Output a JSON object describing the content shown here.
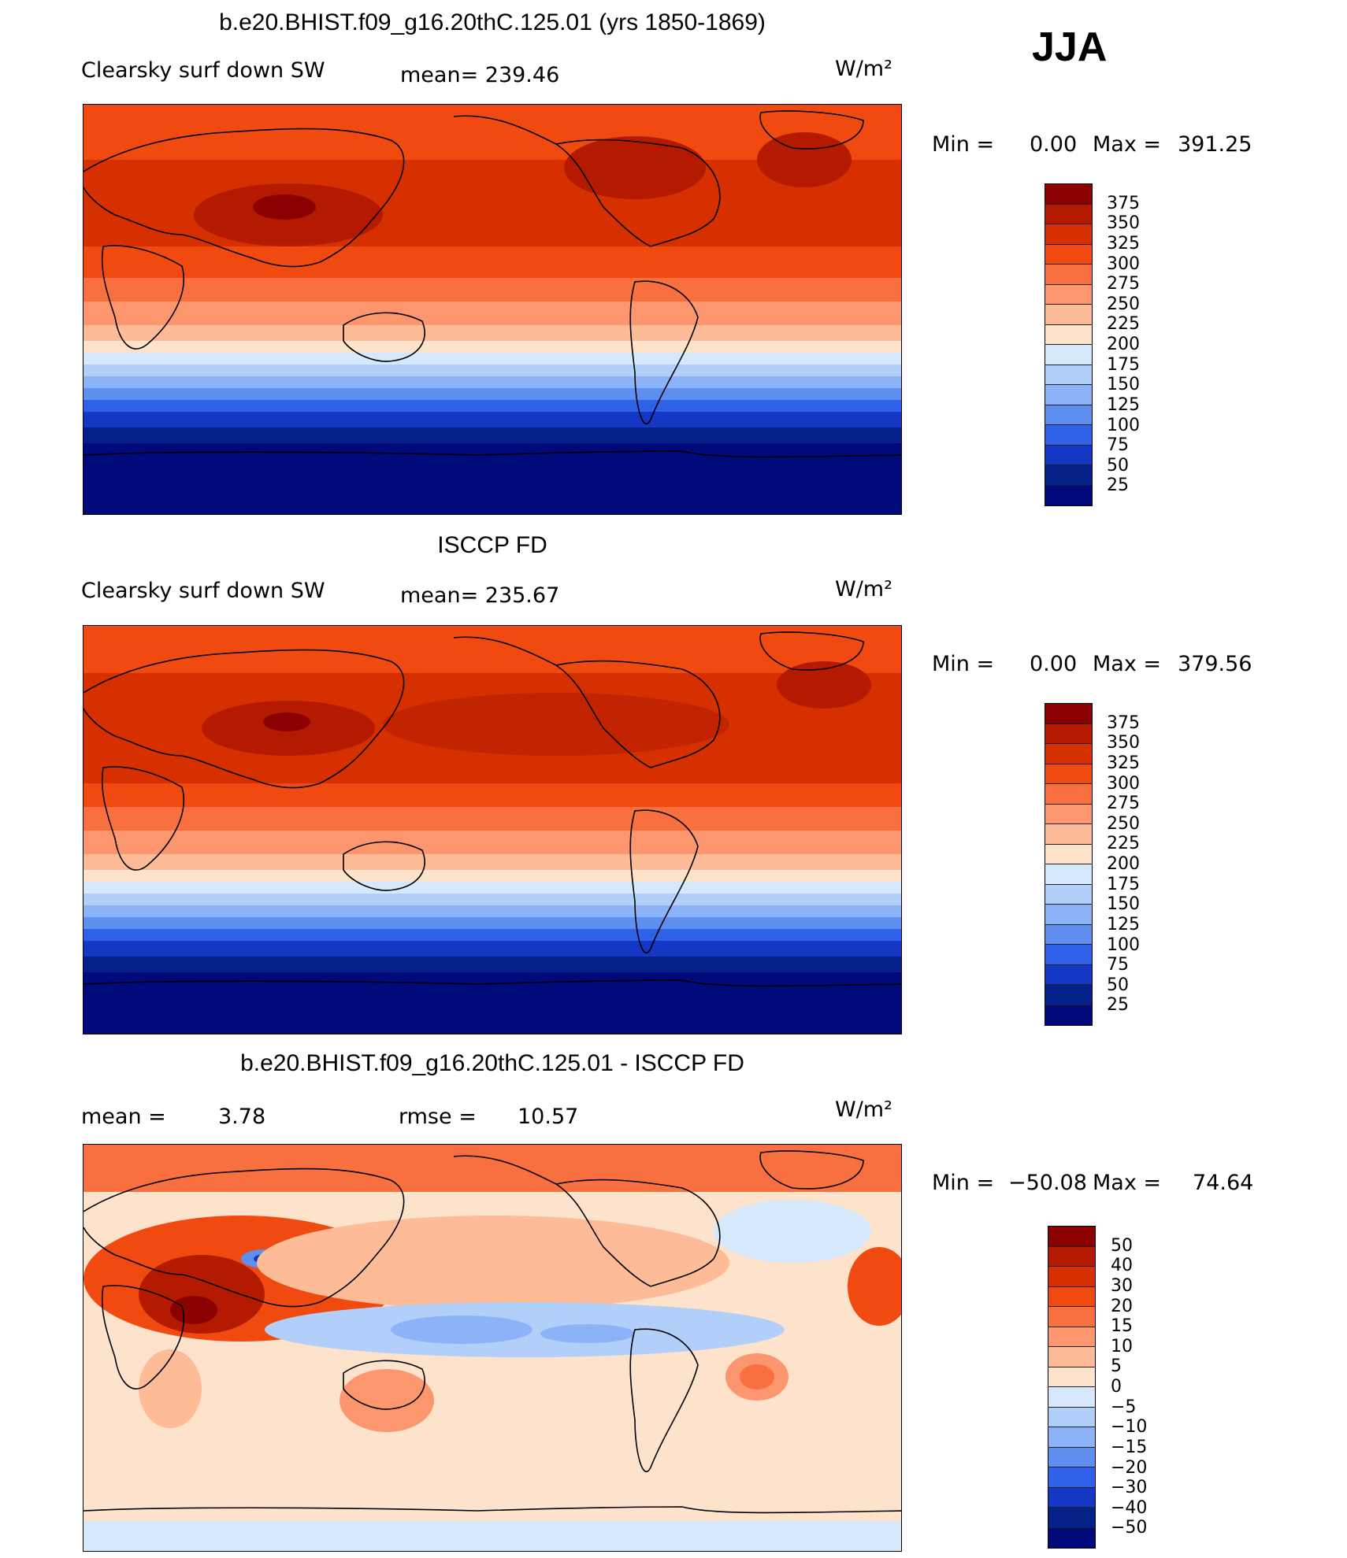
{
  "season": "JJA",
  "units": "W/m²",
  "panels": [
    {
      "title": "b.e20.BHIST.f09_g16.20thC.125.01 (yrs 1850-1869)",
      "variable": "Clearsky surf down SW",
      "mean_text": "mean= 239.46",
      "min_label": "Min =",
      "min_value": "0.00",
      "max_label": "Max =",
      "max_value": "391.25",
      "legend_levels": [
        "375",
        "350",
        "325",
        "300",
        "275",
        "250",
        "225",
        "200",
        "175",
        "150",
        "125",
        "100",
        "75",
        "50",
        "25"
      ],
      "legend_colors": [
        "#8b0000",
        "#b31a00",
        "#d63000",
        "#f04a10",
        "#f97040",
        "#fb966e",
        "#fdbb98",
        "#fde3cb",
        "#d6e8fb",
        "#b2cffa",
        "#8cb2f7",
        "#5f8ef1",
        "#2f62e8",
        "#1437c4",
        "#06208a",
        "#000a7a"
      ]
    },
    {
      "title": "ISCCP FD",
      "variable": "Clearsky surf down SW",
      "mean_text": "mean= 235.67",
      "min_label": "Min =",
      "min_value": "0.00",
      "max_label": "Max =",
      "max_value": "379.56",
      "legend_levels": [
        "375",
        "350",
        "325",
        "300",
        "275",
        "250",
        "225",
        "200",
        "175",
        "150",
        "125",
        "100",
        "75",
        "50",
        "25"
      ],
      "legend_colors": [
        "#8b0000",
        "#b31a00",
        "#d63000",
        "#f04a10",
        "#f97040",
        "#fb966e",
        "#fdbb98",
        "#fde3cb",
        "#d6e8fb",
        "#b2cffa",
        "#8cb2f7",
        "#5f8ef1",
        "#2f62e8",
        "#1437c4",
        "#06208a",
        "#000a7a"
      ]
    },
    {
      "title": "b.e20.BHIST.f09_g16.20thC.125.01 - ISCCP FD",
      "mean_label": "mean =",
      "mean_value": "3.78",
      "rmse_label": "rmse =",
      "rmse_value": "10.57",
      "min_label": "Min =",
      "min_value": "−50.08",
      "max_label": "Max =",
      "max_value": "74.64",
      "legend_levels": [
        "50",
        "40",
        "30",
        "20",
        "15",
        "10",
        "5",
        "0",
        "−5",
        "−10",
        "−15",
        "−20",
        "−30",
        "−40",
        "−50"
      ],
      "legend_colors": [
        "#8b0000",
        "#b31a00",
        "#d63000",
        "#f04a10",
        "#f97040",
        "#fb966e",
        "#fdbb98",
        "#fde3cb",
        "#d6e8fb",
        "#b2cffa",
        "#8cb2f7",
        "#5f8ef1",
        "#2f62e8",
        "#1437c4",
        "#06208a",
        "#000a7a"
      ]
    }
  ]
}
